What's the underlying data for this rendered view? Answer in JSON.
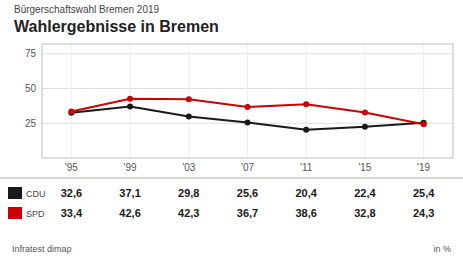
{
  "chart_data": {
    "type": "line",
    "subtitle": "Bürgerschaftswahl Bremen 2019",
    "title": "Wahlergebnisse in Bremen",
    "categories": [
      "'95",
      "'99",
      "'03",
      "'07",
      "'11",
      "'15",
      "'19"
    ],
    "series": [
      {
        "name": "CDU",
        "color": "#1a1a1a",
        "marker": "circle",
        "values": [
          32.6,
          37.1,
          29.8,
          25.6,
          20.4,
          22.4,
          25.4
        ],
        "value_labels": [
          "32,6",
          "37,1",
          "29,8",
          "25,6",
          "20,4",
          "22,4",
          "25,4"
        ]
      },
      {
        "name": "SPD",
        "color": "#cc0000",
        "marker": "circle",
        "values": [
          33.4,
          42.6,
          42.3,
          36.7,
          38.6,
          32.8,
          24.3
        ],
        "value_labels": [
          "33,4",
          "42,6",
          "42,3",
          "36,7",
          "38,6",
          "32,8",
          "24,3"
        ]
      }
    ],
    "ylim": [
      0,
      82
    ],
    "yticks": [
      25,
      50,
      75
    ],
    "grid": true,
    "legend": "bottom",
    "source": "Infratest dimap",
    "unit": "in %"
  }
}
